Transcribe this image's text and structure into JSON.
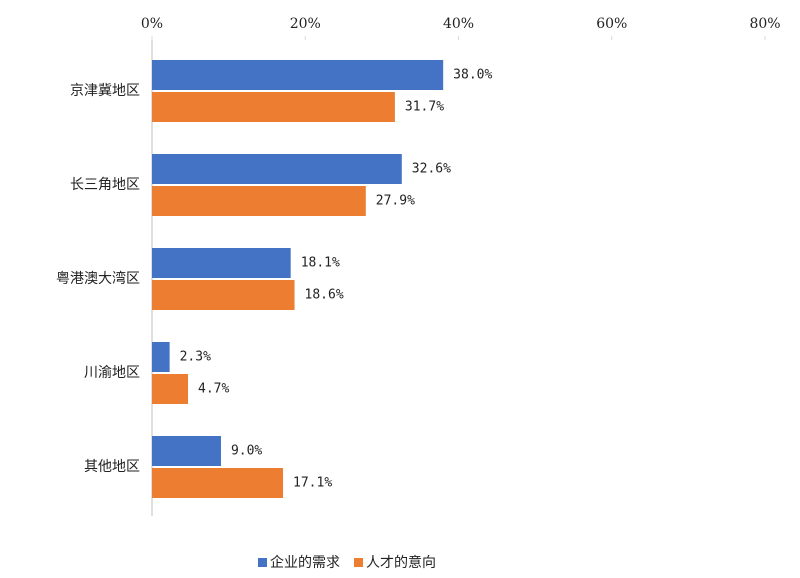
{
  "chart_data": {
    "type": "hbar",
    "categories": [
      "京津冀地区",
      "长三角地区",
      "粤港澳大湾区",
      "川渝地区",
      "其他地区"
    ],
    "series": [
      {
        "name": "企业的需求",
        "color": "#4472c4",
        "values": [
          38.0,
          32.6,
          18.1,
          2.3,
          9.0
        ],
        "value_labels": [
          "38.0%",
          "32.6%",
          "18.1%",
          "2.3%",
          "9.0%"
        ]
      },
      {
        "name": "人才的意向",
        "color": "#ed7d31",
        "values": [
          31.7,
          27.9,
          18.6,
          4.7,
          17.1
        ],
        "value_labels": [
          "31.7%",
          "27.9%",
          "18.6%",
          "4.7%",
          "17.1%"
        ]
      }
    ],
    "xlim": [
      0,
      80
    ],
    "xticks": [
      {
        "value": 0,
        "label": "0%"
      },
      {
        "value": 20,
        "label": "20%"
      },
      {
        "value": 40,
        "label": "40%"
      },
      {
        "value": 60,
        "label": "60%"
      },
      {
        "value": 80,
        "label": "80%"
      }
    ],
    "legend": "bottom",
    "grid": false
  }
}
